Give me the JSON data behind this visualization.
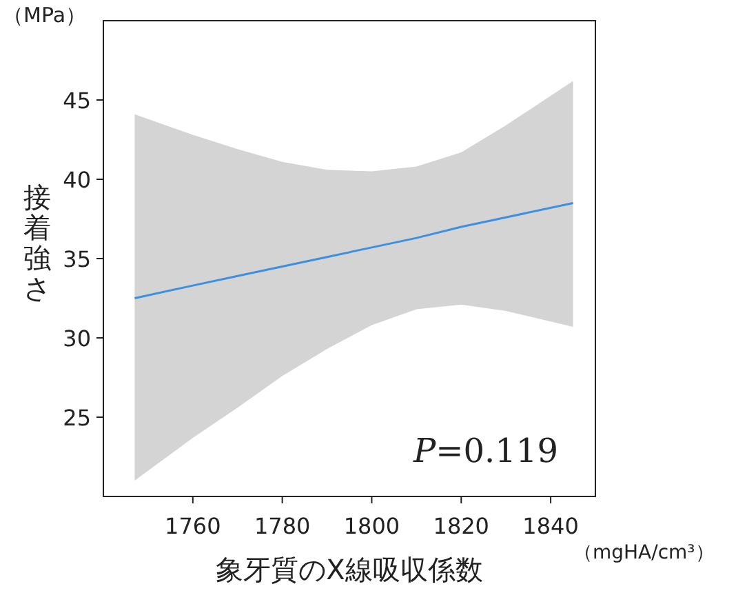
{
  "chart_data": {
    "type": "line",
    "xlabel": "象牙質のX線吸収係数",
    "ylabel": "接着強さ",
    "annotations": [
      "（MPa）",
      "（mgHA/cm³）",
      "P=0.119"
    ],
    "xlim": [
      1740,
      1850
    ],
    "ylim": [
      20,
      50
    ],
    "xticks": [
      1760,
      1780,
      1800,
      1820,
      1840
    ],
    "yticks": [
      25,
      30,
      35,
      40,
      45
    ],
    "series": [
      {
        "color": "#3d8fe0",
        "x": [
          1747,
          1760,
          1770,
          1780,
          1790,
          1800,
          1810,
          1820,
          1830,
          1845
        ],
        "values": [
          32.5,
          33.3,
          33.9,
          34.5,
          35.1,
          35.7,
          36.3,
          37.0,
          37.6,
          38.5
        ],
        "lower": [
          21.0,
          23.7,
          25.6,
          27.6,
          29.3,
          30.8,
          31.8,
          32.1,
          31.7,
          30.7
        ],
        "upper": [
          44.1,
          42.8,
          41.9,
          41.1,
          40.6,
          40.5,
          40.8,
          41.7,
          43.4,
          46.2
        ]
      }
    ]
  }
}
